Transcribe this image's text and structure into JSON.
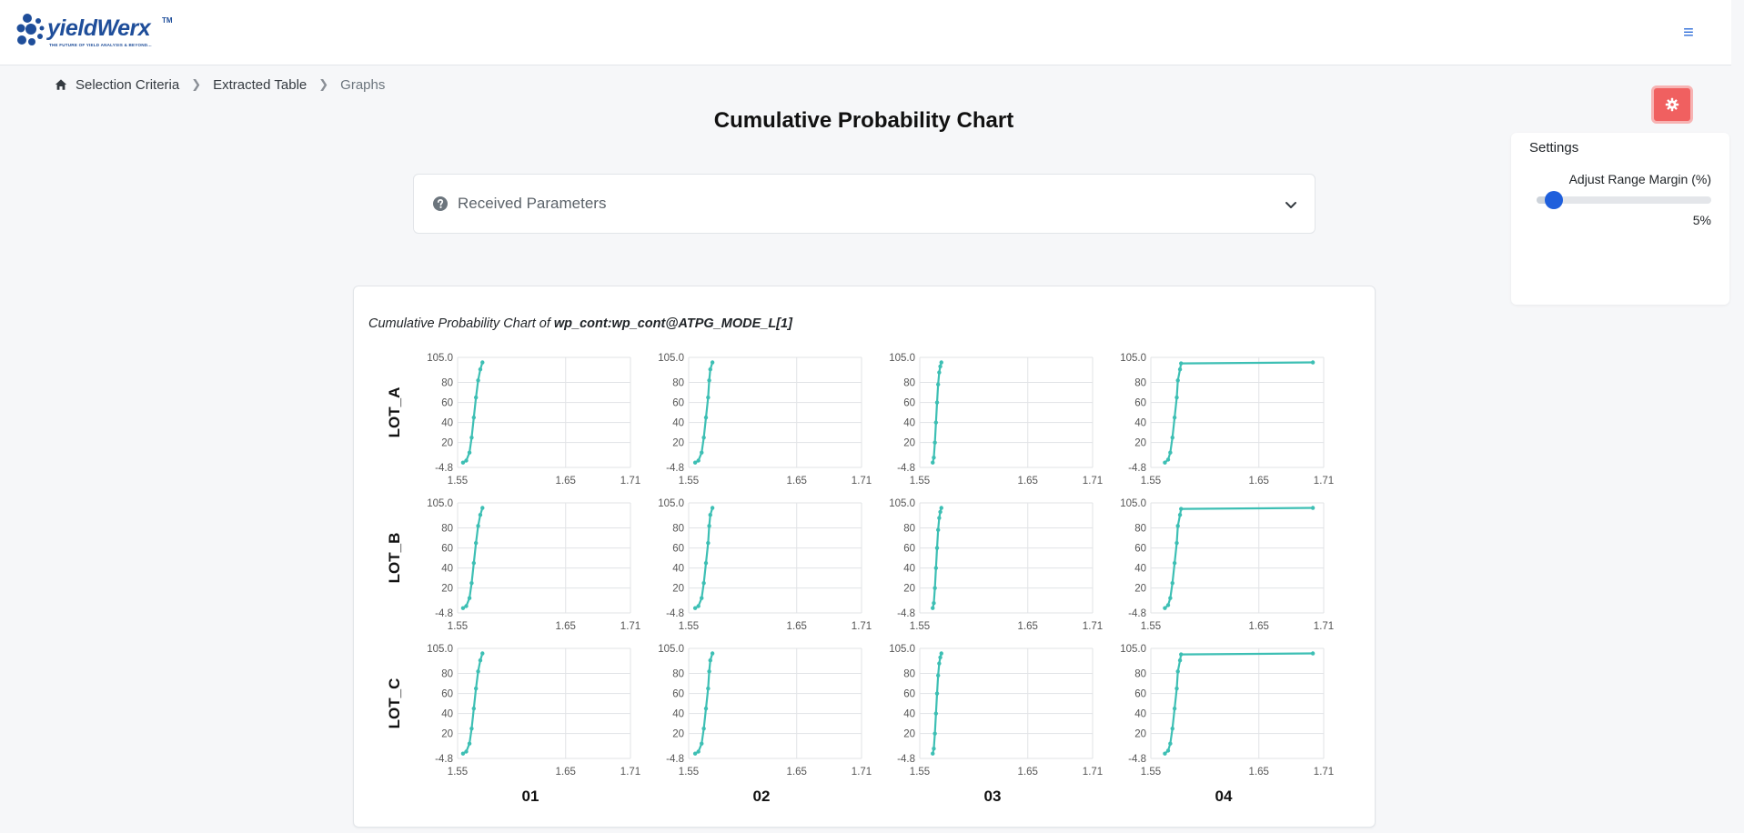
{
  "header": {
    "logo_text": "yieldWerx",
    "logo_tm": "TM",
    "logo_tagline": "THE FUTURE OF YIELD ANALYSIS & BEYOND...",
    "menu_icon": "hamburger-icon"
  },
  "breadcrumb": {
    "items": [
      "Selection Criteria",
      "Extracted Table",
      "Graphs"
    ],
    "home_icon": "home-icon"
  },
  "page_title": "Cumulative Probability Chart",
  "settings": {
    "button_icon": "gear-icon",
    "button_color": "#f06060",
    "title": "Settings",
    "range_label": "Adjust Range Margin (%)",
    "range_value": 5,
    "range_value_text": "5%",
    "accent": "#1f5fdc"
  },
  "received_parameters": {
    "label": "Received Parameters",
    "icon": "question-circle-icon",
    "expanded": false
  },
  "chart_card": {
    "caption_prefix": "Cumulative Probability Chart of ",
    "caption_param": "wp_cont:wp_cont@ATPG_MODE_L[1]"
  },
  "chart_data": {
    "type": "scatter",
    "series_color": "#3dbfb4",
    "rows": [
      "LOT_A",
      "LOT_B",
      "LOT_C"
    ],
    "columns": [
      "01",
      "02",
      "03",
      "04"
    ],
    "x_ticks": [
      "1.55",
      "1.65",
      "1.71"
    ],
    "y_ticks": [
      "105.0",
      "80",
      "60",
      "40",
      "20",
      "-4.8"
    ],
    "xlim": [
      1.55,
      1.71
    ],
    "ylim": [
      -4.8,
      105.0
    ],
    "grid": true,
    "panels": {
      "01": {
        "x": [
          1.555,
          1.558,
          1.561,
          1.563,
          1.565,
          1.567,
          1.569,
          1.571,
          1.573
        ],
        "y": [
          0,
          2,
          10,
          25,
          45,
          65,
          82,
          93,
          100
        ]
      },
      "02": {
        "x": [
          1.556,
          1.559,
          1.562,
          1.564,
          1.566,
          1.568,
          1.569,
          1.57,
          1.572
        ],
        "y": [
          0,
          2,
          10,
          25,
          45,
          65,
          82,
          93,
          100
        ]
      },
      "03": {
        "x": [
          1.562,
          1.563,
          1.564,
          1.565,
          1.566,
          1.567,
          1.568,
          1.569,
          1.57
        ],
        "y": [
          0,
          5,
          20,
          40,
          60,
          78,
          90,
          96,
          100
        ]
      },
      "04": {
        "x": [
          1.563,
          1.566,
          1.568,
          1.57,
          1.572,
          1.574,
          1.575,
          1.577,
          1.578,
          1.7
        ],
        "y": [
          0,
          3,
          10,
          25,
          45,
          65,
          82,
          93,
          99,
          100
        ]
      }
    }
  }
}
